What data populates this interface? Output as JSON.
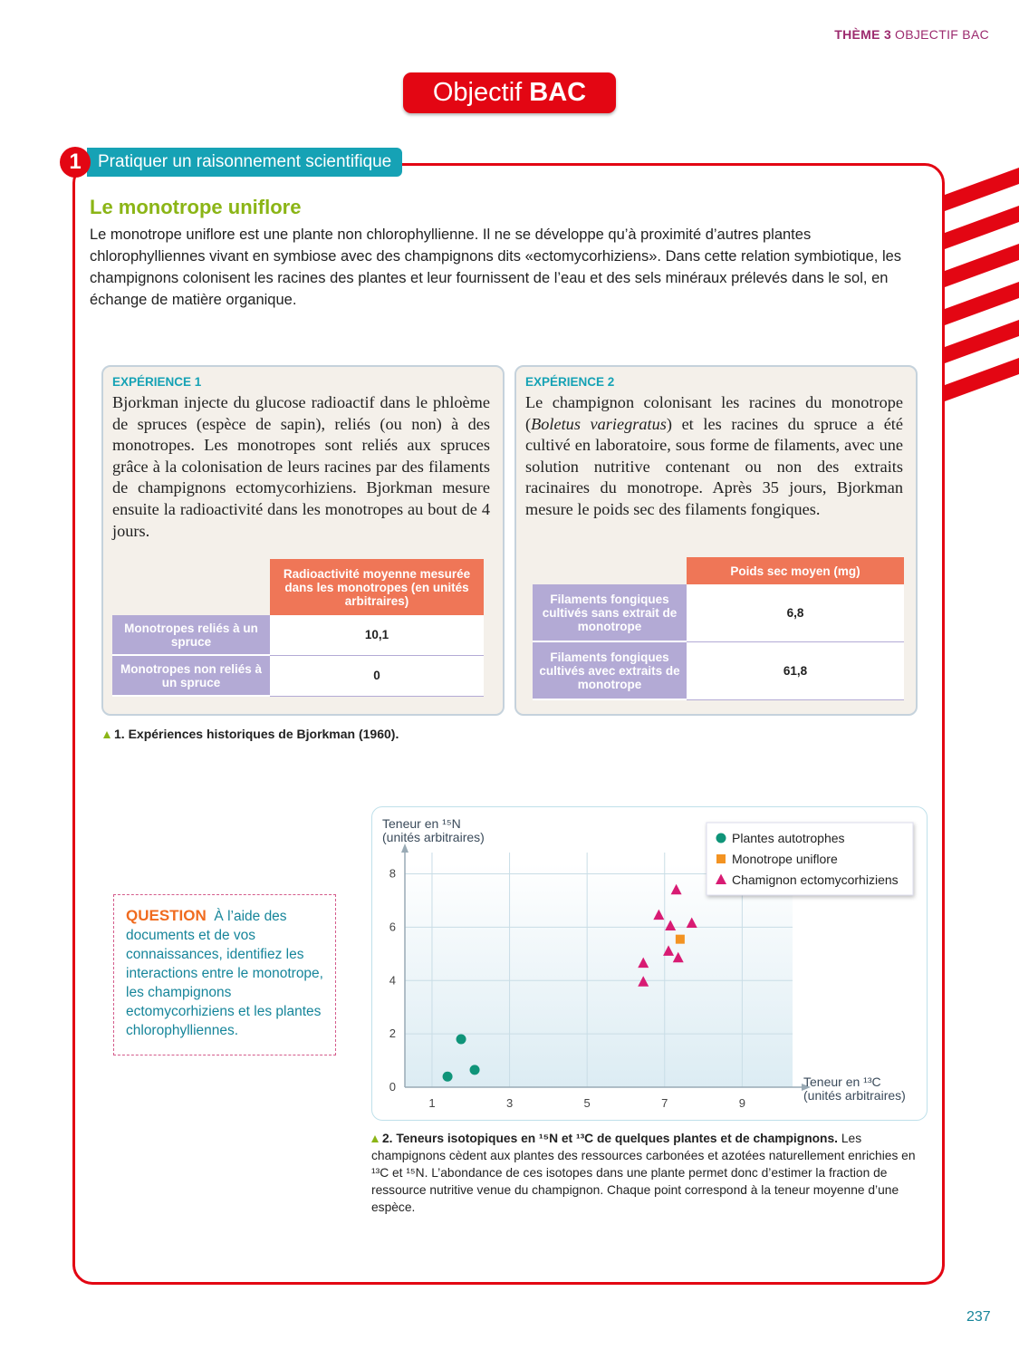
{
  "header": {
    "theme": "THÈME 3",
    "section": "OBJECTIF BAC"
  },
  "title": {
    "prefix": "Objectif",
    "emphasis": "BAC"
  },
  "exercise": {
    "number": "1",
    "skill": "Pratiquer un raisonnement scientifique",
    "heading": "Le monotrope uniflore",
    "intro": "Le monotrope uniflore est une plante non chlorophyllienne. Il ne se développe qu’à proximité d’autres plantes chlorophylliennes vivant en symbiose avec des champignons dits «ectomycorhiziens». Dans cette relation symbiotique, les champignons colonisent les racines des plantes et leur fournissent de l’eau et des sels minéraux prélevés dans le sol, en échange de matière organique."
  },
  "experiments": [
    {
      "label": "EXPÉRIENCE 1",
      "text": "Bjorkman injecte du glucose radioactif dans le phloème de spruces (espèce de sapin), reliés (ou non) à des monotropes. Les monotropes sont reliés aux spruces grâce à la colonisation de leurs racines par des filaments de champignons ectomycorhiziens. Bjorkman mesure ensuite la radioactivité dans les monotropes au bout de 4 jours.",
      "table": {
        "header": "Radioactivité moyenne mesurée dans les monotropes (en unités arbitraires)",
        "rows": [
          [
            "Monotropes reliés à un spruce",
            "10,1"
          ],
          [
            "Monotropes non reliés à un spruce",
            "0"
          ]
        ]
      }
    },
    {
      "label": "EXPÉRIENCE 2",
      "text": [
        "Le champignon colonisant les racines du monotrope (",
        "Boletus variegratus",
        ") et les racines du spruce a été cultivé en laboratoire, sous forme de filaments, avec une solution nutritive contenant ou non des extraits racinaires du monotrope. Après 35 jours, Bjorkman mesure le poids sec des filaments fongiques."
      ],
      "table": {
        "header": "Poids sec moyen (mg)",
        "rows": [
          [
            "Filaments fongiques cultivés sans extrait de monotrope",
            "6,8"
          ],
          [
            "Filaments fongiques cultivés avec extraits de monotrope",
            "61,8"
          ]
        ]
      }
    }
  ],
  "figure1_caption": "1. Expériences historiques de Bjorkman (1960).",
  "question": {
    "label": "QUESTION",
    "text": "À l’aide des documents et de vos connaissances, identifiez les interactions entre le monotrope, les champignons ectomycorhiziens et les plantes chlorophylliennes."
  },
  "chart_data": {
    "type": "scatter",
    "ylabel": [
      "Teneur en ¹⁵N",
      "(unités arbitraires)"
    ],
    "xlabel": [
      "Teneur en ¹³C",
      "(unités arbitraires)"
    ],
    "xlim": [
      0.3,
      10.3
    ],
    "ylim": [
      0,
      8.8
    ],
    "xticks": [
      1,
      3,
      5,
      7,
      9
    ],
    "yticks": [
      0,
      2,
      4,
      6,
      8
    ],
    "grid": true,
    "legend": "upper right",
    "series": [
      {
        "name": "Plantes autotrophes",
        "color": "#0f9479",
        "marker": "circle",
        "x": [
          1.4,
          1.75,
          2.1
        ],
        "values": [
          0.4,
          1.8,
          0.65
        ]
      },
      {
        "name": "Monotrope uniflore",
        "color": "#f39322",
        "marker": "square",
        "x": [
          7.4
        ],
        "values": [
          5.55
        ]
      },
      {
        "name": "Chamignon ectomycorhiziens",
        "color": "#d81b73",
        "marker": "triangle",
        "x": [
          7.3,
          6.85,
          7.15,
          7.7,
          7.1,
          7.35,
          6.45,
          6.45
        ],
        "values": [
          7.4,
          6.45,
          6.05,
          6.15,
          5.1,
          4.85,
          4.65,
          3.95
        ]
      }
    ]
  },
  "figure2_caption": {
    "title": "2. Teneurs isotopiques en ¹⁵N et ¹³C de quelques plantes et de champignons.",
    "text": "Les champignons cèdent aux plantes des ressources carbonées et azotées naturellement enrichies en ¹³C et ¹⁵N. L’abondance de ces isotopes dans une plante permet donc d’estimer la fraction de ressource nutritive venue du champignon. Chaque point correspond à la teneur moyenne d’une espèce."
  },
  "page_number": "237"
}
